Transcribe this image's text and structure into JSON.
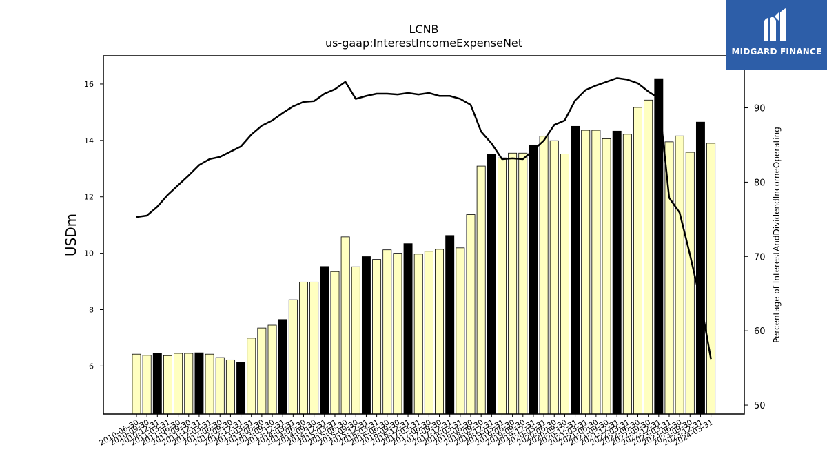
{
  "chart_data": {
    "type": "bar",
    "title": "LCNB",
    "subtitle": "us-gaap:InterestIncomeExpenseNet",
    "ylabel": "USDm",
    "y2label": "Percentage of InterestAndDividendIncomeOperating",
    "ylim": [
      4.3,
      17.0
    ],
    "y2lim": [
      48.8,
      97.0
    ],
    "yticks": [
      6,
      8,
      10,
      12,
      14,
      16
    ],
    "y2ticks": [
      50,
      60,
      70,
      80,
      90
    ],
    "categories": [
      "2010-06-30",
      "2010-09-30",
      "2010-12-31",
      "2011-03-31",
      "2011-06-30",
      "2011-09-30",
      "2011-12-31",
      "2012-03-31",
      "2012-06-30",
      "2012-09-30",
      "2012-12-31",
      "2013-03-31",
      "2013-06-30",
      "2013-09-30",
      "2013-12-31",
      "2014-03-31",
      "2014-06-30",
      "2014-09-30",
      "2014-12-31",
      "2015-03-31",
      "2015-06-30",
      "2015-09-30",
      "2015-12-31",
      "2016-03-31",
      "2016-06-30",
      "2016-09-30",
      "2016-12-31",
      "2017-03-31",
      "2017-06-30",
      "2017-09-30",
      "2017-12-31",
      "2018-03-31",
      "2018-06-30",
      "2018-09-30",
      "2018-12-31",
      "2019-03-31",
      "2019-06-30",
      "2019-09-30",
      "2019-12-31",
      "2020-03-31",
      "2020-06-30",
      "2020-09-30",
      "2020-12-31",
      "2021-03-31",
      "2021-06-30",
      "2021-09-30",
      "2021-12-31",
      "2022-03-31",
      "2022-06-30",
      "2022-09-30",
      "2022-12-31",
      "2023-03-31",
      "2023-06-30",
      "2023-09-30",
      "2023-12-31",
      "2024-03-31"
    ],
    "series": [
      {
        "kind": "bar",
        "axis": "left",
        "values": [
          6.42,
          6.38,
          6.44,
          6.37,
          6.45,
          6.45,
          6.47,
          6.42,
          6.3,
          6.22,
          6.13,
          6.99,
          7.35,
          7.45,
          7.65,
          8.35,
          8.98,
          8.98,
          9.53,
          9.35,
          10.58,
          9.52,
          9.88,
          9.78,
          10.12,
          10.0,
          10.34,
          9.97,
          10.07,
          10.14,
          10.63,
          10.19,
          11.37,
          13.09,
          13.51,
          13.38,
          13.55,
          13.55,
          13.84,
          14.15,
          13.99,
          13.52,
          14.5,
          14.36,
          14.36,
          14.06,
          14.33,
          14.22,
          15.17,
          15.43,
          16.19,
          13.95,
          14.16,
          13.58,
          14.65,
          13.9
        ],
        "highlight": [
          false,
          false,
          true,
          false,
          false,
          false,
          true,
          false,
          false,
          false,
          true,
          false,
          false,
          false,
          true,
          false,
          false,
          false,
          true,
          false,
          false,
          false,
          true,
          false,
          false,
          false,
          true,
          false,
          false,
          false,
          true,
          false,
          false,
          false,
          true,
          false,
          false,
          false,
          true,
          false,
          false,
          false,
          true,
          false,
          false,
          false,
          true,
          false,
          false,
          false,
          true,
          false,
          false,
          false,
          true,
          false
        ],
        "color": "#ffffc0",
        "highlight_color": "#000000"
      },
      {
        "kind": "line",
        "axis": "right",
        "values": [
          75.3,
          75.5,
          76.7,
          78.3,
          79.6,
          80.9,
          82.3,
          83.1,
          83.4,
          84.1,
          84.8,
          86.4,
          87.6,
          88.3,
          89.3,
          90.2,
          90.8,
          90.9,
          91.9,
          92.5,
          93.5,
          91.2,
          91.6,
          91.9,
          91.9,
          91.8,
          92.0,
          91.8,
          92.0,
          91.6,
          91.6,
          91.2,
          90.4,
          86.8,
          85.2,
          83.1,
          83.2,
          83.1,
          84.3,
          85.6,
          87.7,
          88.3,
          91.0,
          92.4,
          93.0,
          93.5,
          94.0,
          93.8,
          93.3,
          92.2,
          91.3,
          77.9,
          75.9,
          70.2,
          64.0,
          56.2
        ],
        "color": "#000000"
      }
    ],
    "grid": false,
    "legend": "none"
  },
  "logo": {
    "text": "MIDGARD FINANCE",
    "color": "#2d5ea8"
  }
}
